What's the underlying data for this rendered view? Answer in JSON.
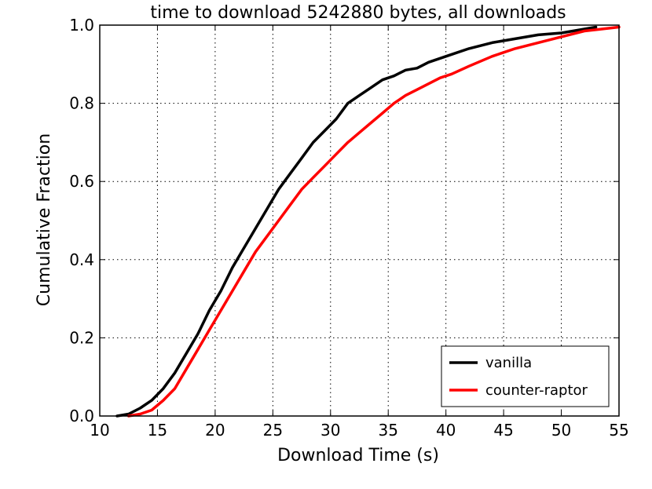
{
  "chart_data": {
    "type": "line",
    "title": "time to download 5242880 bytes, all downloads",
    "xlabel": "Download Time (s)",
    "ylabel": "Cumulative Fraction",
    "xlim": [
      10,
      55
    ],
    "ylim": [
      0.0,
      1.0
    ],
    "xticks": [
      "10",
      "15",
      "20",
      "25",
      "30",
      "35",
      "40",
      "45",
      "50",
      "55"
    ],
    "yticks": [
      "0.0",
      "0.2",
      "0.4",
      "0.6",
      "0.8",
      "1.0"
    ],
    "grid": true,
    "legend_position": "bottom-right",
    "series": [
      {
        "name": "vanilla",
        "color": "#000000",
        "x": [
          11.5,
          12.5,
          13.5,
          14.5,
          15.5,
          16.5,
          17.5,
          18.5,
          19.5,
          20.5,
          21.5,
          22.5,
          23.5,
          24.5,
          25.5,
          26.5,
          27.5,
          28.5,
          29.5,
          30.5,
          31.5,
          32.5,
          33.5,
          34.5,
          35.5,
          36.5,
          37.5,
          38.5,
          39.5,
          40.5,
          42,
          44,
          46,
          48,
          50,
          52,
          53
        ],
        "y": [
          0.0,
          0.005,
          0.02,
          0.04,
          0.07,
          0.11,
          0.16,
          0.21,
          0.27,
          0.32,
          0.38,
          0.43,
          0.48,
          0.53,
          0.58,
          0.62,
          0.66,
          0.7,
          0.73,
          0.76,
          0.8,
          0.82,
          0.84,
          0.86,
          0.87,
          0.885,
          0.89,
          0.905,
          0.915,
          0.925,
          0.94,
          0.955,
          0.965,
          0.975,
          0.98,
          0.99,
          0.995
        ]
      },
      {
        "name": "counter-raptor",
        "color": "#ff0000",
        "x": [
          12.5,
          13.5,
          14.5,
          15.5,
          16.5,
          17.5,
          18.5,
          19.5,
          20.5,
          21.5,
          22.5,
          23.5,
          24.5,
          25.5,
          26.5,
          27.5,
          28.5,
          29.5,
          30.5,
          31.5,
          32.5,
          33.5,
          34.5,
          35.5,
          36.5,
          37.5,
          38.5,
          39.5,
          40.5,
          42,
          44,
          46,
          48,
          50,
          52,
          53.5,
          55
        ],
        "y": [
          0.0,
          0.005,
          0.015,
          0.04,
          0.07,
          0.12,
          0.17,
          0.22,
          0.27,
          0.32,
          0.37,
          0.42,
          0.46,
          0.5,
          0.54,
          0.58,
          0.61,
          0.64,
          0.67,
          0.7,
          0.725,
          0.75,
          0.775,
          0.8,
          0.82,
          0.835,
          0.85,
          0.865,
          0.875,
          0.895,
          0.92,
          0.94,
          0.955,
          0.97,
          0.985,
          0.99,
          0.995
        ]
      }
    ]
  }
}
